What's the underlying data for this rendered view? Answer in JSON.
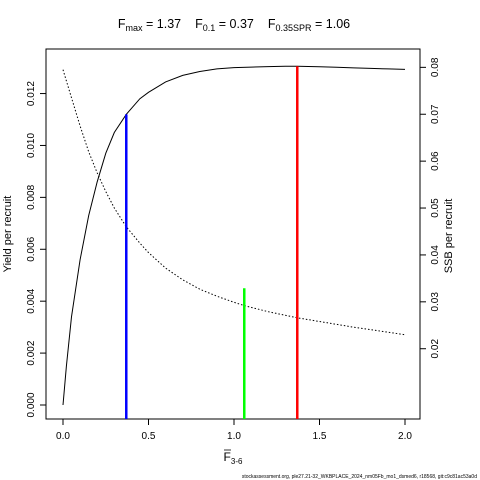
{
  "title_parts": {
    "fmax_main": "F",
    "fmax_sub": "max",
    "fmax_val": " = 1.37",
    "f01_main": "F",
    "f01_sub": "0.1",
    "f01_val": " = 0.37",
    "fspr_main": "F",
    "fspr_sub": "0.35SPR",
    "fspr_val": " = 1.06"
  },
  "footer": "stockassessment.org, ple27.21-32_WKBPLACE_2024_nm05Fb_mo1_dsmed6, r18568, git:c9c81ac53a0d",
  "chart_data": {
    "type": "line",
    "xlabel_main": "F",
    "xlabel_sub": "3-6",
    "ylabel": "Yield per recruit",
    "y2label": "SSB per recruit",
    "xlim": [
      0,
      2
    ],
    "ylim": [
      0,
      0.0131
    ],
    "y2lim": [
      0.008,
      0.0805
    ],
    "x_ticks": [
      0.0,
      0.5,
      1.0,
      1.5,
      2.0
    ],
    "x_tick_labels": [
      "0.0",
      "0.5",
      "1.0",
      "1.5",
      "2.0"
    ],
    "y_ticks": [
      0.0,
      0.002,
      0.004,
      0.006,
      0.008,
      0.01,
      0.012
    ],
    "y_tick_labels": [
      "0.000",
      "0.002",
      "0.004",
      "0.006",
      "0.008",
      "0.010",
      "0.012"
    ],
    "y2_ticks": [
      0.02,
      0.03,
      0.04,
      0.05,
      0.06,
      0.07,
      0.08
    ],
    "y2_tick_labels": [
      "0.02",
      "0.03",
      "0.04",
      "0.05",
      "0.06",
      "0.07",
      "0.08"
    ],
    "grid": false,
    "series": [
      {
        "axis": "left",
        "style": "solid",
        "color": "#000000",
        "x": [
          0,
          0.02,
          0.05,
          0.1,
          0.15,
          0.2,
          0.25,
          0.3,
          0.37,
          0.45,
          0.5,
          0.6,
          0.7,
          0.8,
          0.9,
          1.0,
          1.1,
          1.2,
          1.3,
          1.37,
          1.5,
          1.6,
          1.7,
          1.8,
          1.9,
          2.0
        ],
        "y": [
          0.0,
          0.0015,
          0.0034,
          0.0056,
          0.0073,
          0.0086,
          0.0097,
          0.0105,
          0.0112,
          0.0118,
          0.01205,
          0.01245,
          0.0127,
          0.01285,
          0.01295,
          0.013,
          0.01302,
          0.01304,
          0.01305,
          0.01305,
          0.01303,
          0.01301,
          0.01299,
          0.01297,
          0.01295,
          0.01293
        ]
      },
      {
        "axis": "right",
        "style": "dotted",
        "color": "#000000",
        "x": [
          0,
          0.05,
          0.1,
          0.15,
          0.2,
          0.25,
          0.3,
          0.37,
          0.45,
          0.5,
          0.6,
          0.7,
          0.8,
          0.9,
          1.0,
          1.06,
          1.2,
          1.37,
          1.5,
          1.7,
          2.0
        ],
        "y": [
          0.0795,
          0.0735,
          0.0675,
          0.062,
          0.0575,
          0.0535,
          0.05,
          0.046,
          0.0425,
          0.0405,
          0.0372,
          0.0347,
          0.0327,
          0.0312,
          0.0299,
          0.0292,
          0.0279,
          0.0266,
          0.0258,
          0.0246,
          0.023
        ]
      }
    ],
    "reference_lines": [
      {
        "name": "F0.1",
        "x": 0.37,
        "y": 0.0112,
        "color": "#0000ff"
      },
      {
        "name": "F0.35SPR",
        "x": 1.06,
        "y": 0.0045,
        "color": "#00ff00"
      },
      {
        "name": "Fmax",
        "x": 1.37,
        "y": 0.01305,
        "color": "#ff0000"
      }
    ]
  }
}
